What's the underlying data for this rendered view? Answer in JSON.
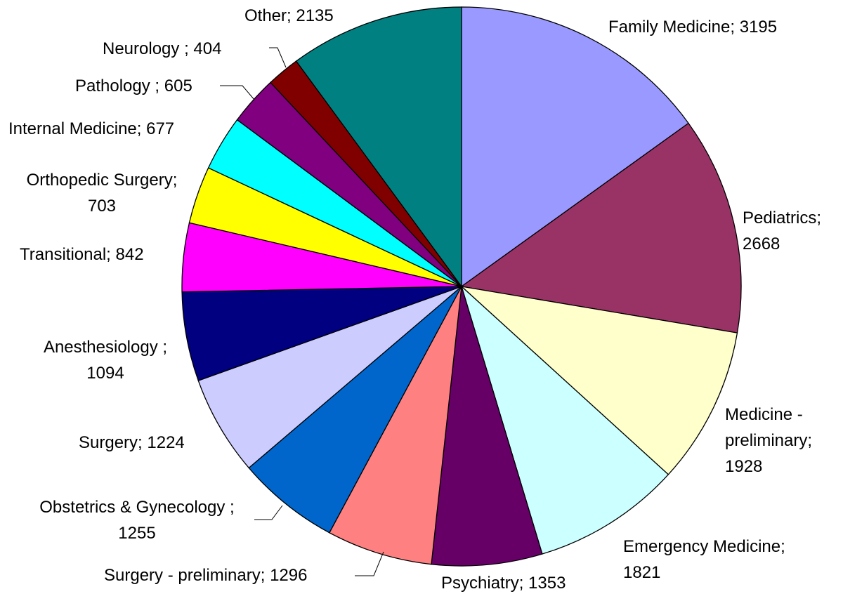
{
  "chart_data": {
    "type": "pie",
    "title": "",
    "start": "top",
    "direction": "clockwise",
    "slices": [
      {
        "name": "Family Medicine",
        "value": 3195,
        "color": "#9999FF",
        "lines": [
          "Family Medicine; 3195"
        ]
      },
      {
        "name": "Pediatrics",
        "value": 2668,
        "color": "#993366",
        "lines": [
          "Pediatrics;",
          "2668"
        ]
      },
      {
        "name": "Medicine - preliminary",
        "value": 1928,
        "color": "#FFFFCC",
        "lines": [
          "Medicine -",
          "preliminary;",
          "1928"
        ]
      },
      {
        "name": "Emergency Medicine",
        "value": 1821,
        "color": "#CCFFFF",
        "lines": [
          "Emergency Medicine;",
          "1821"
        ]
      },
      {
        "name": "Psychiatry",
        "value": 1353,
        "color": "#660066",
        "lines": [
          "Psychiatry; 1353"
        ]
      },
      {
        "name": "Surgery - preliminary",
        "value": 1296,
        "color": "#FF8080",
        "lines": [
          "Surgery - preliminary; 1296"
        ]
      },
      {
        "name": "Obstetrics & Gynecology",
        "value": 1255,
        "color": "#0066CC",
        "lines": [
          "Obstetrics & Gynecology ;",
          "1255"
        ]
      },
      {
        "name": "Surgery",
        "value": 1224,
        "color": "#CCCCFF",
        "lines": [
          "Surgery; 1224"
        ]
      },
      {
        "name": "Anesthesiology",
        "value": 1094,
        "color": "#000080",
        "lines": [
          "Anesthesiology ;",
          "1094"
        ]
      },
      {
        "name": "Transitional",
        "value": 842,
        "color": "#FF00FF",
        "lines": [
          "Transitional; 842"
        ]
      },
      {
        "name": "Orthopedic Surgery",
        "value": 703,
        "color": "#FFFF00",
        "lines": [
          "Orthopedic Surgery;",
          "703"
        ]
      },
      {
        "name": "Internal Medicine",
        "value": 677,
        "color": "#00FFFF",
        "lines": [
          "Internal Medicine; 677"
        ]
      },
      {
        "name": "Pathology",
        "value": 605,
        "color": "#800080",
        "lines": [
          "Pathology ; 605"
        ]
      },
      {
        "name": "Neurology",
        "value": 404,
        "color": "#800000",
        "lines": [
          "Neurology ; 404"
        ]
      },
      {
        "name": "Other",
        "value": 2135,
        "color": "#008080",
        "lines": [
          "Other; 2135"
        ]
      }
    ]
  }
}
